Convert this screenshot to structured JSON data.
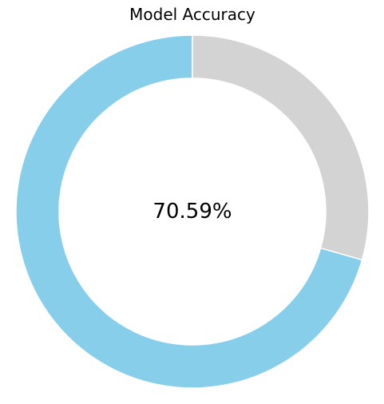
{
  "chart_data": {
    "type": "pie",
    "title": "Model Accuracy",
    "center_label": "70.59%",
    "start_angle_deg": 90,
    "direction": "counterclockwise",
    "slices": [
      {
        "value": 70.59,
        "color": "#87CEEB"
      },
      {
        "value": 29.41,
        "color": "#D3D3D3"
      }
    ]
  }
}
